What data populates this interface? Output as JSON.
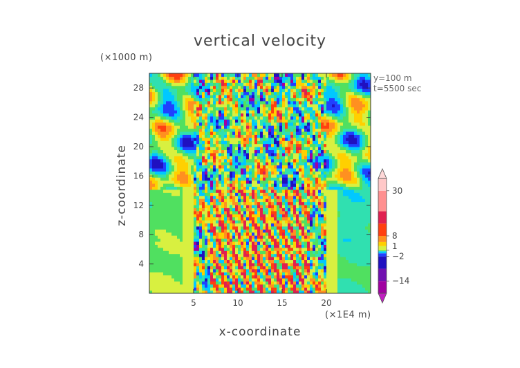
{
  "chart_data": {
    "type": "heatmap",
    "title": "vertical velocity",
    "xlabel": "x-coordinate",
    "ylabel": "z-coordinate",
    "x_units": "(×1E4 m)",
    "y_units": "(×1000 m)",
    "xlim": [
      0,
      25
    ],
    "ylim": [
      0,
      30
    ],
    "xticks": [
      5,
      10,
      15,
      20
    ],
    "yticks": [
      4,
      8,
      12,
      16,
      20,
      24,
      28
    ],
    "annotations": [
      "y=100 m",
      "t=5500 sec"
    ],
    "colorbar": {
      "ticks": [
        30,
        8,
        1,
        -2,
        -14
      ],
      "tick_labels": [
        "30",
        "8",
        "1",
        "−2",
        "−14"
      ],
      "range": [
        -20,
        36
      ]
    }
  },
  "colors": {
    "background": "#ffffff",
    "text": "#444444",
    "scale": [
      "#a000a0",
      "#2010c0",
      "#2040ff",
      "#00c8ff",
      "#30e0b0",
      "#50e060",
      "#d8f040",
      "#ffd000",
      "#ff9020",
      "#ff4010",
      "#e02050",
      "#ff9090",
      "#ffc8c8"
    ]
  }
}
